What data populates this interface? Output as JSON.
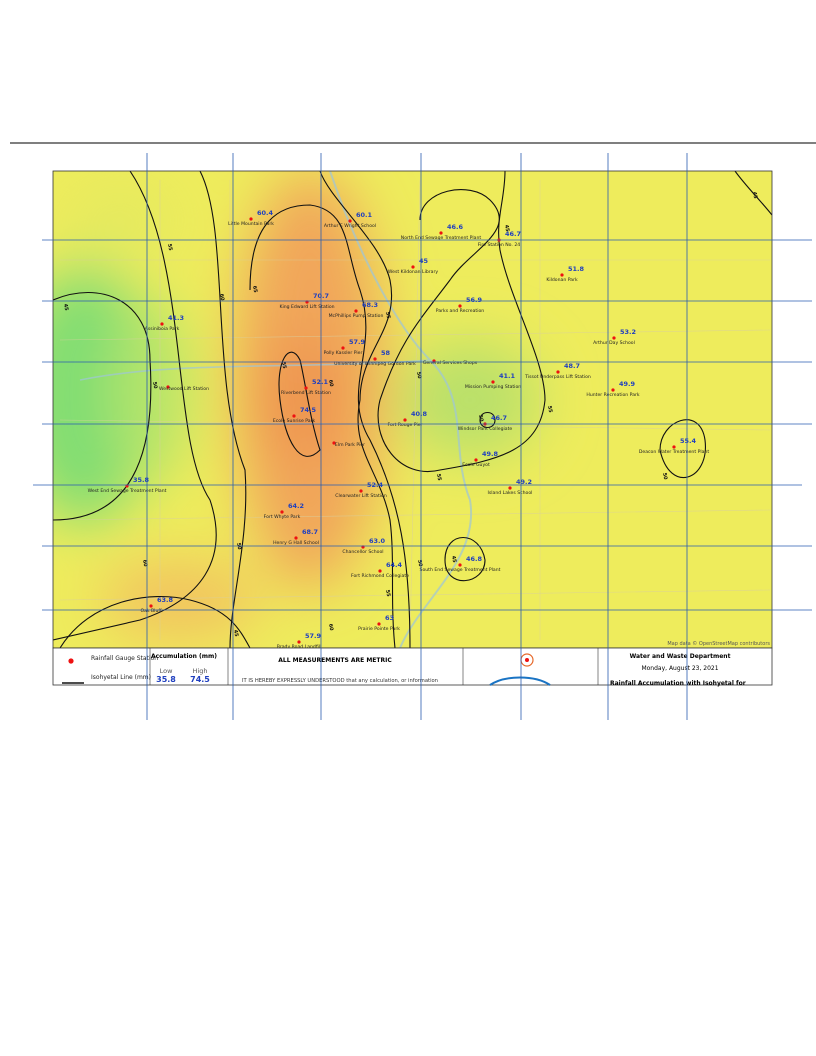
{
  "map": {
    "stations": [
      {
        "value": "60.4",
        "name": "Little Mountain Park"
      },
      {
        "value": "60.1",
        "name": "Arthur E Wright School"
      },
      {
        "value": "46.6",
        "name": "North End Sewage Treatment Plant"
      },
      {
        "value": "46.7",
        "name": "Fire Station No. 24"
      },
      {
        "value": "45",
        "name": "West Kildonan Library"
      },
      {
        "value": "51.8",
        "name": "Kildonan Park"
      },
      {
        "value": "70.7",
        "name": "King Edward Lift Station"
      },
      {
        "value": "68.3",
        "name": "McPhillips Pump Station"
      },
      {
        "value": "56.9",
        "name": "Parks and Recreation"
      },
      {
        "value": "41.3",
        "name": "Assiniboia Park"
      },
      {
        "value": "53.2",
        "name": "Arthur Day School"
      },
      {
        "value": "57.9",
        "name": "Polly Kassler Pier"
      },
      {
        "value": "58",
        "name": "University of Winnipeg Gordon Park"
      },
      {
        "value": "48.7",
        "name": "Tissot Underpass Lift Station"
      },
      {
        "value": "41.1",
        "name": "Mission Pumping Station"
      },
      {
        "value": "49.9",
        "name": "Hunter Recreation Park"
      },
      {
        "value": "52.1",
        "name": "Riverbend Lift Station"
      },
      {
        "value": "74.5",
        "name": "Ecole Sunrise Park"
      },
      {
        "value": "40.8",
        "name": "Fort Rouge Pier"
      },
      {
        "value": "46.7",
        "name": "Windsor Park Collegiate"
      },
      {
        "value": "55.4",
        "name": "Deacon Water Treatment Plant"
      },
      {
        "value": "49.8",
        "name": "Ecole Guyot"
      },
      {
        "value": "35.8",
        "name": "West End Sewage Treatment Plant"
      },
      {
        "value": "52.4",
        "name": "Clearwater Lift Station"
      },
      {
        "value": "49.2",
        "name": "Island Lakes School"
      },
      {
        "value": "64.2",
        "name": "Fort Whyte Park"
      },
      {
        "value": "68.7",
        "name": "Henry G Hall School"
      },
      {
        "value": "63.0",
        "name": "Chancellor School"
      },
      {
        "value": "64.4",
        "name": "Fort Richmond Collegiate"
      },
      {
        "value": "46.8",
        "name": "South End Sewage Treatment Plant"
      },
      {
        "value": "63.8",
        "name": "Oak Bluff"
      },
      {
        "value": "63",
        "name": "Prairie Pointe Park"
      },
      {
        "value": "57.9",
        "name": "Brady Road Landfill"
      }
    ],
    "unlabeled_stations": [
      "Westwood Lift Station",
      "General Services Shops",
      "Elm Park Pier"
    ],
    "contour_labels": [
      "45",
      "55",
      "50",
      "60",
      "65",
      "55",
      "50",
      "45",
      "60",
      "55",
      "50",
      "45",
      "55",
      "50",
      "55",
      "60",
      "60",
      "55",
      "50",
      "45",
      "50",
      "45"
    ],
    "attribution": "Map data © OpenStreetMap contributors",
    "legend": {
      "gauge": "Rainfall Gauge Station",
      "isohyetal": "Isohyetal Line (mm)",
      "accumulation": "Accumulation (mm)",
      "low_label": "Low",
      "high_label": "High",
      "low": "35.8",
      "high": "74.5"
    },
    "notice": {
      "title": "ALL MEASUREMENTS ARE METRIC",
      "text": "IT IS HEREBY EXPRESSLY UNDERSTOOD that any calculation, or information"
    },
    "title_block": {
      "department": "Water and Waste Department",
      "date": "Monday, August 23, 2021",
      "title": "Rainfall Accumulation with Isohyetal for"
    }
  }
}
